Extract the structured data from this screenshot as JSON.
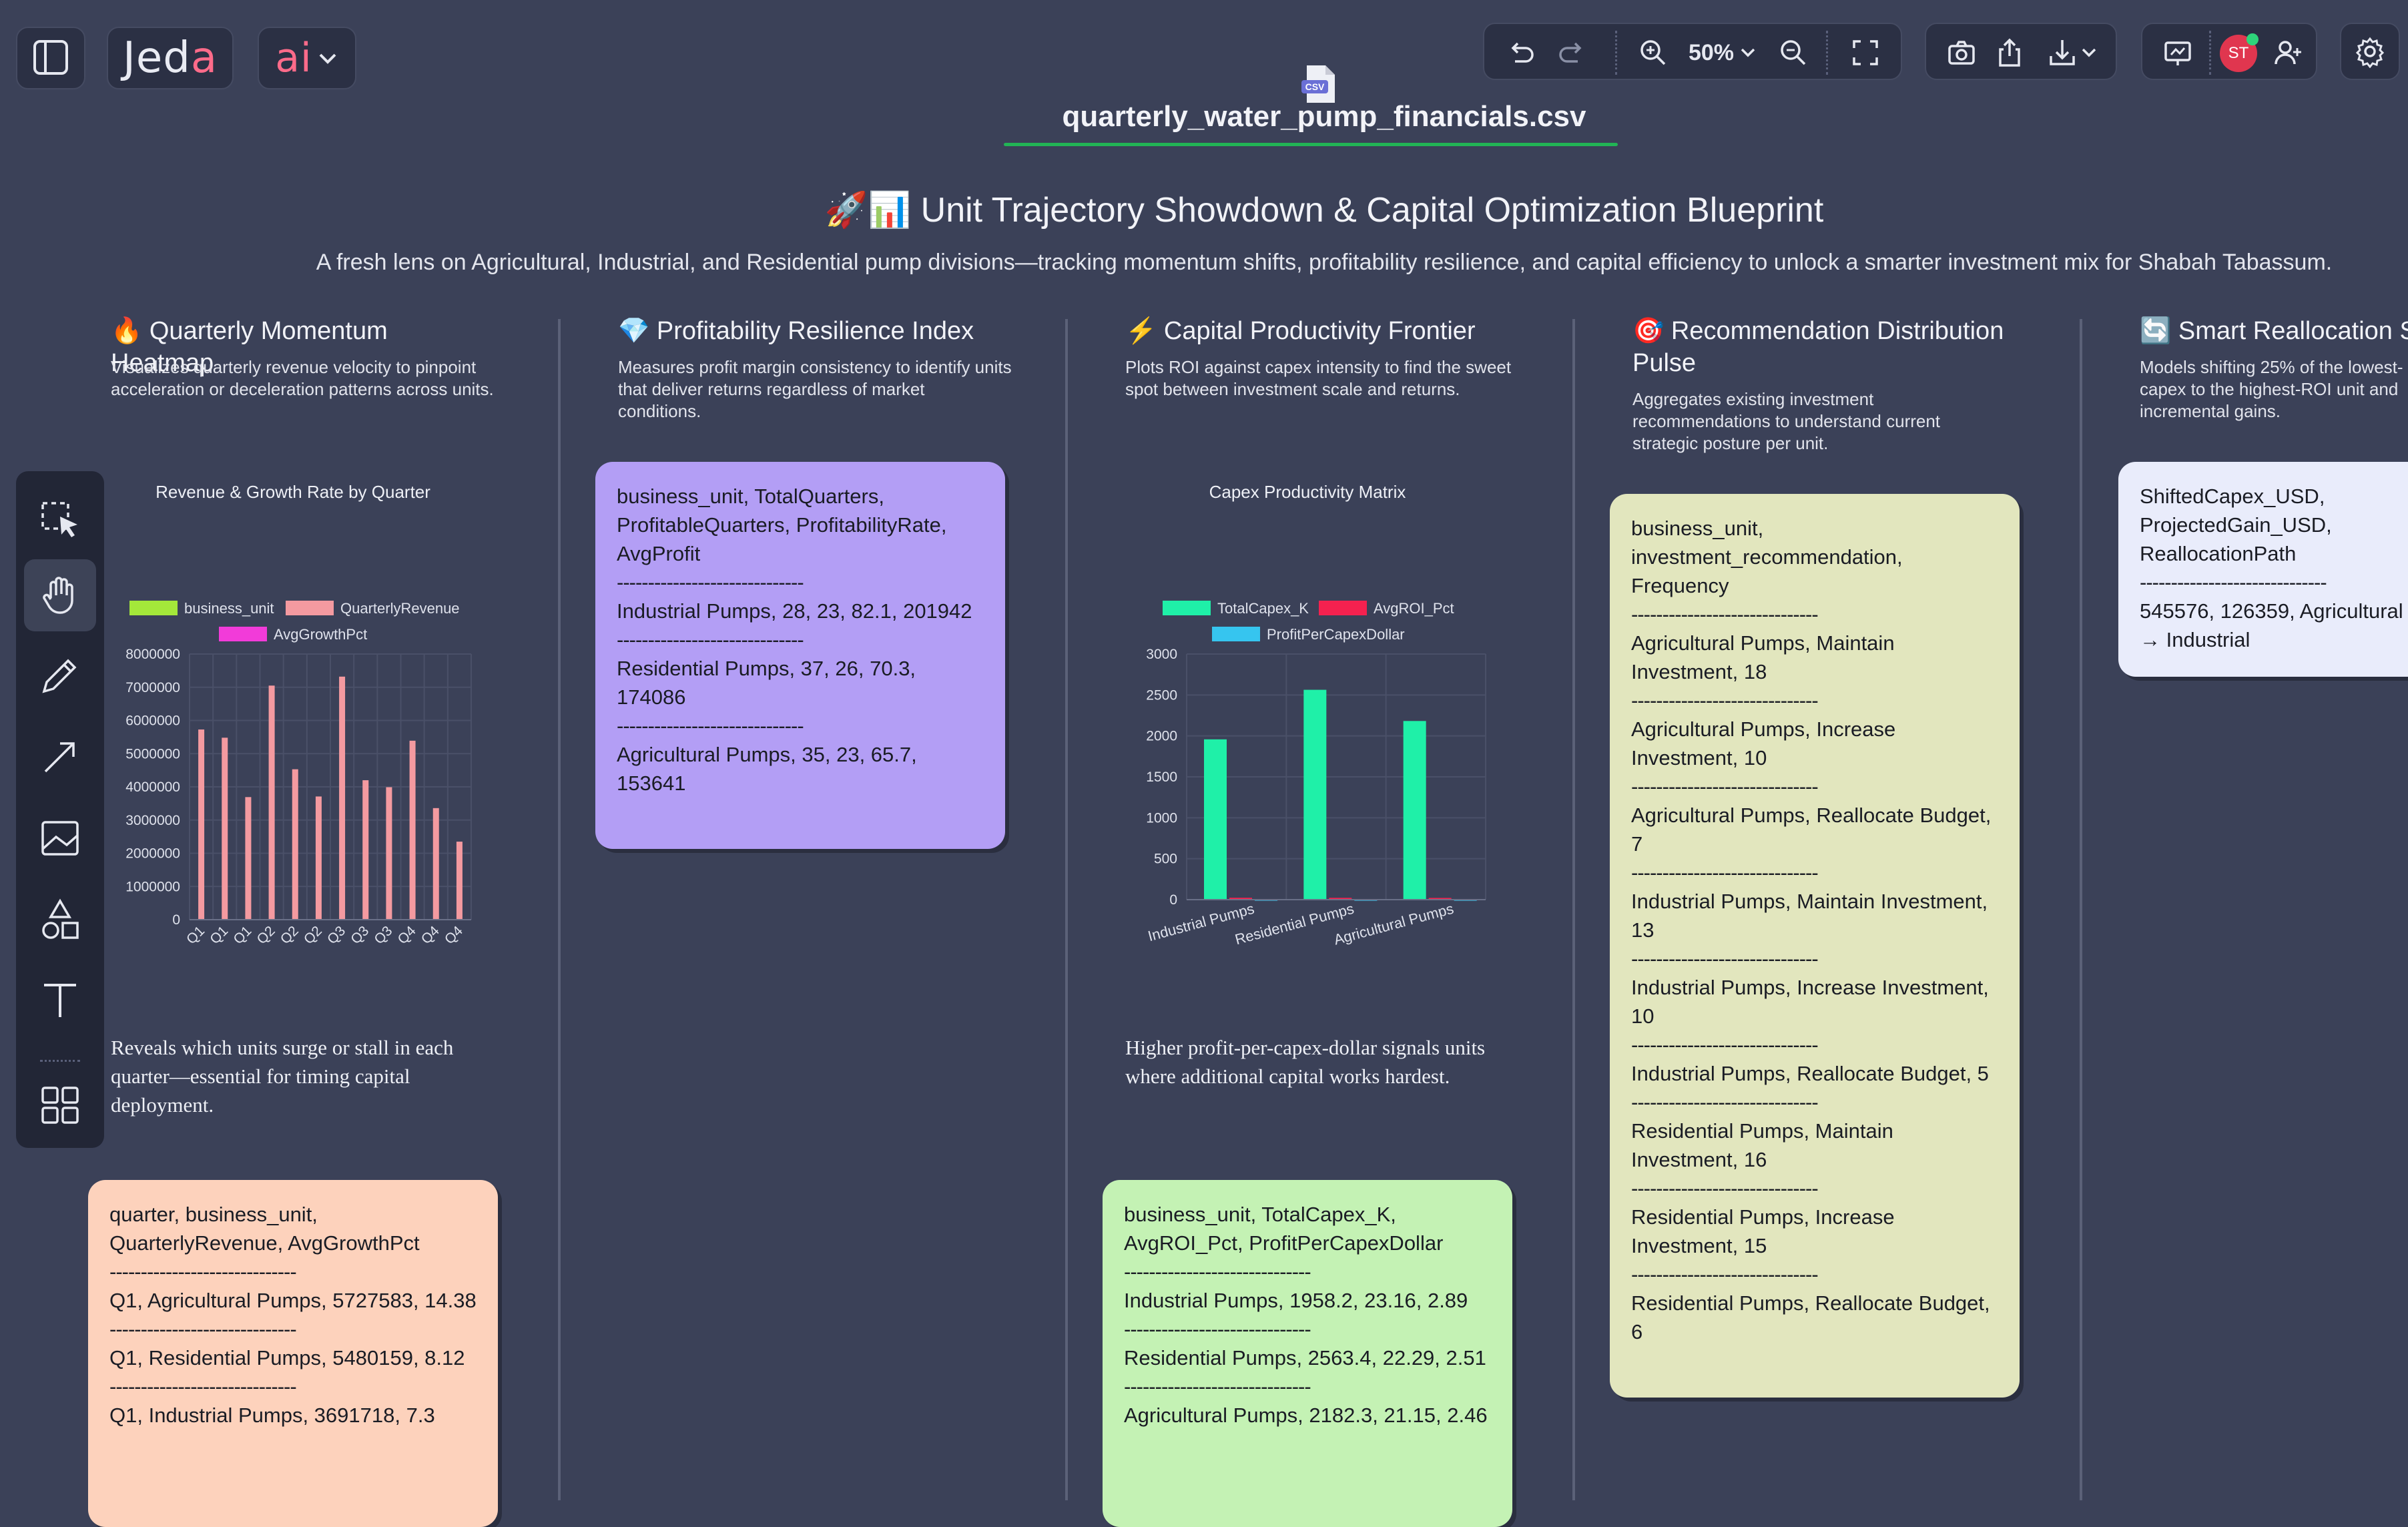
{
  "app": {
    "logo_text": "Jeda",
    "ai_label": "ai",
    "zoom": "50%",
    "avatar_initials": "ST"
  },
  "file": {
    "badge": "CSV",
    "name": "quarterly_water_pump_financials.csv"
  },
  "header": {
    "title": "🚀📊 Unit Trajectory Showdown & Capital Optimization Blueprint",
    "subtitle": "A fresh lens on Agricultural, Industrial, and Residential pump divisions—tracking momentum shifts, profitability resilience, and capital efficiency to unlock a smarter investment mix for Shabah Tabassum."
  },
  "columns": [
    {
      "title": "🔥 Quarterly Momentum Heatmap",
      "desc": "Visualizes quarterly revenue velocity to pinpoint acceleration or deceleration patterns across units.",
      "note": "Reveals which units surge or stall in each quarter—essential for timing capital deployment."
    },
    {
      "title": "💎 Profitability Resilience Index",
      "desc": "Measures profit margin consistency to identify units that deliver returns regardless of market conditions."
    },
    {
      "title": "⚡ Capital Productivity Frontier",
      "desc": "Plots ROI against capex intensity to find the sweet spot between investment scale and returns.",
      "note": "Higher profit-per-capex-dollar signals units where additional capital works hardest."
    },
    {
      "title": "🎯 Recommendation Distribution Pulse",
      "desc": "Aggregates existing investment recommendations to understand current strategic posture per unit."
    },
    {
      "title": "🔄 Smart Reallocation Si",
      "desc": "Models shifting 25% of the lowest- capex to the highest-ROI unit and incremental gains."
    }
  ],
  "cards": {
    "profitability": {
      "lines": [
        "business_unit, TotalQuarters, ProfitableQuarters, ProfitabilityRate, AvgProfit",
        "------------------------------",
        "Industrial Pumps, 28, 23, 82.1, 201942",
        "------------------------------",
        "Residential Pumps, 37, 26, 70.3, 174086",
        "------------------------------",
        "Agricultural Pumps, 35, 23, 65.7, 153641"
      ]
    },
    "recommendation": {
      "lines": [
        "business_unit, investment_recommendation, Frequency",
        "------------------------------",
        "Agricultural Pumps, Maintain Investment, 18",
        "------------------------------",
        "Agricultural Pumps, Increase Investment, 10",
        "------------------------------",
        "Agricultural Pumps, Reallocate Budget, 7",
        "------------------------------",
        "Industrial Pumps, Maintain Investment, 13",
        "------------------------------",
        "Industrial Pumps, Increase Investment, 10",
        "------------------------------",
        "Industrial Pumps, Reallocate Budget, 5",
        "------------------------------",
        "Residential Pumps, Maintain Investment, 16",
        "------------------------------",
        "Residential Pumps, Increase Investment, 15",
        "------------------------------",
        "Residential Pumps, Reallocate Budget, 6"
      ]
    },
    "reallocation": {
      "lines": [
        "ShiftedCapex_USD, ProjectedGain_USD, ReallocationPath",
        "------------------------------",
        "545576, 126359, Agricultural → Industrial"
      ]
    },
    "quarterly": {
      "lines": [
        "quarter, business_unit, QuarterlyRevenue, AvgGrowthPct",
        "------------------------------",
        "Q1, Agricultural Pumps, 5727583, 14.38",
        "------------------------------",
        "Q1, Residential Pumps, 5480159, 8.12",
        "------------------------------",
        "Q1, Industrial Pumps, 3691718, 7.3"
      ]
    },
    "capex": {
      "lines": [
        "business_unit, TotalCapex_K, AvgROI_Pct, ProfitPerCapexDollar",
        "------------------------------",
        "Industrial Pumps, 1958.2, 23.16, 2.89",
        "------------------------------",
        "Residential Pumps, 2563.4, 22.29, 2.51",
        "------------------------------",
        "Agricultural Pumps, 2182.3, 21.15, 2.46"
      ]
    }
  },
  "chart_data": [
    {
      "type": "bar",
      "title": "Revenue & Growth Rate by Quarter",
      "legend": [
        "business_unit",
        "QuarterlyRevenue",
        "AvgGrowthPct"
      ],
      "legend_colors": [
        "#a4e83a",
        "#f49aa0",
        "#f23bd9"
      ],
      "categories": [
        "Q1",
        "Q1",
        "Q1",
        "Q2",
        "Q2",
        "Q2",
        "Q3",
        "Q3",
        "Q3",
        "Q4",
        "Q4",
        "Q4"
      ],
      "series": [
        {
          "name": "QuarterlyRevenue",
          "color": "#f49aa0",
          "values": [
            5727583,
            5480159,
            3691718,
            7050000,
            4530000,
            3710000,
            7320000,
            4200000,
            3990000,
            5390000,
            3360000,
            2350000
          ]
        }
      ],
      "ylim": [
        0,
        8000000
      ],
      "yticks": [
        "8000000",
        "7000000",
        "6000000",
        "5000000",
        "4000000",
        "3000000",
        "2000000",
        "1000000",
        "0"
      ]
    },
    {
      "type": "bar",
      "title": "Capex Productivity Matrix",
      "legend": [
        "TotalCapex_K",
        "AvgROI_Pct",
        "ProfitPerCapexDollar"
      ],
      "legend_colors": [
        "#1ff0a8",
        "#f5214f",
        "#36c5ef"
      ],
      "categories": [
        "Industrial Pumps",
        "Residential Pumps",
        "Agricultural Pumps"
      ],
      "series": [
        {
          "name": "TotalCapex_K",
          "color": "#1ff0a8",
          "values": [
            1958.2,
            2563.4,
            2182.3
          ]
        },
        {
          "name": "AvgROI_Pct",
          "color": "#f5214f",
          "values": [
            23.16,
            22.29,
            21.15
          ]
        },
        {
          "name": "ProfitPerCapexDollar",
          "color": "#36c5ef",
          "values": [
            2.89,
            2.51,
            2.46
          ]
        }
      ],
      "ylim": [
        0,
        3000
      ],
      "yticks": [
        "3000",
        "2500",
        "2000",
        "1500",
        "1000",
        "500",
        "0"
      ]
    }
  ]
}
